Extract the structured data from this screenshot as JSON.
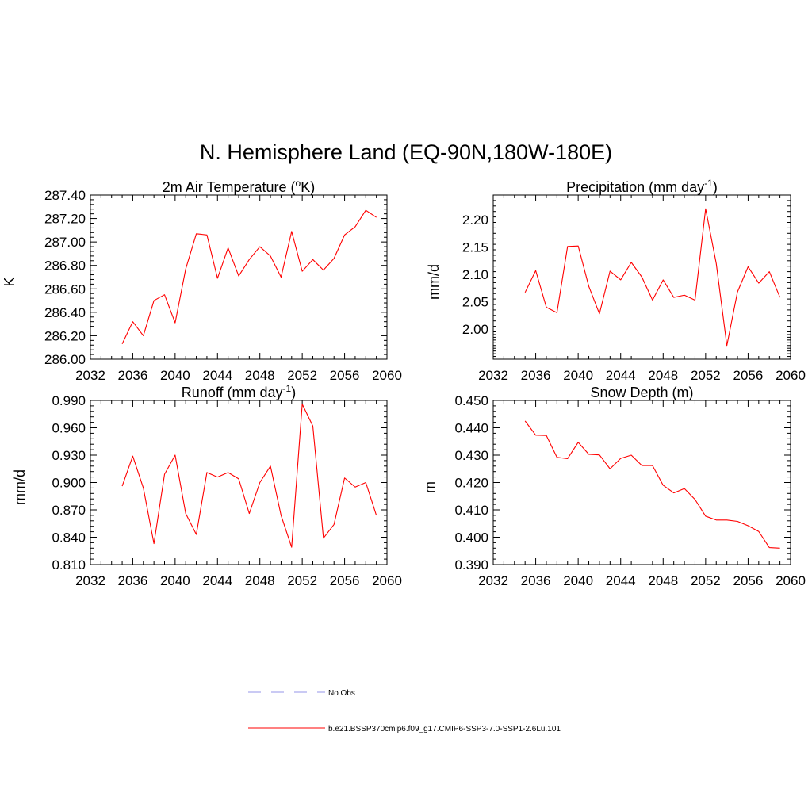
{
  "figure": {
    "title": "N. Hemisphere Land (EQ-90N,180W-180E)"
  },
  "chart_data": [
    {
      "type": "line",
      "title": "2m Air Temperature (",
      "title_sup": "o",
      "title_after": "K)",
      "xlabel": "",
      "ylabel": "K",
      "xlim": [
        2032,
        2060
      ],
      "ylim": [
        286.0,
        287.4
      ],
      "x_ticks": [
        "2032",
        "2036",
        "2040",
        "2044",
        "2048",
        "2052",
        "2056",
        "2060"
      ],
      "y_ticks": [
        "286.00",
        "286.20",
        "286.40",
        "286.60",
        "286.80",
        "287.00",
        "287.20",
        "287.40"
      ],
      "series": [
        {
          "color": "#ff0000",
          "x": [
            2035,
            2036,
            2037,
            2038,
            2039,
            2040,
            2041,
            2042,
            2043,
            2044,
            2045,
            2046,
            2047,
            2048,
            2049,
            2050,
            2051,
            2052,
            2053,
            2054,
            2055,
            2056,
            2057,
            2058,
            2059
          ],
          "y": [
            286.13,
            286.32,
            286.2,
            286.5,
            286.55,
            286.31,
            286.77,
            287.07,
            287.06,
            286.69,
            286.95,
            286.71,
            286.85,
            286.96,
            286.88,
            286.7,
            287.09,
            286.75,
            286.85,
            286.76,
            286.86,
            287.06,
            287.13,
            287.27,
            287.21
          ]
        }
      ]
    },
    {
      "type": "line",
      "title": "Precipitation (mm day",
      "title_sup": "-1",
      "title_after": ")",
      "xlabel": "",
      "ylabel": "mm/d",
      "xlim": [
        2032,
        2060
      ],
      "ylim": [
        1.945,
        2.245
      ],
      "x_ticks": [
        "2032",
        "2036",
        "2040",
        "2044",
        "2048",
        "2052",
        "2056",
        "2060"
      ],
      "y_ticks": [
        "2.00",
        "2.05",
        "2.10",
        "2.15",
        "2.20"
      ],
      "series": [
        {
          "color": "#ff0000",
          "x": [
            2035,
            2036,
            2037,
            2038,
            2039,
            2040,
            2041,
            2042,
            2043,
            2044,
            2045,
            2046,
            2047,
            2048,
            2049,
            2050,
            2051,
            2052,
            2053,
            2054,
            2055,
            2056,
            2057,
            2058,
            2059
          ],
          "y": [
            2.067,
            2.107,
            2.04,
            2.03,
            2.151,
            2.152,
            2.078,
            2.028,
            2.106,
            2.09,
            2.122,
            2.095,
            2.053,
            2.09,
            2.058,
            2.062,
            2.053,
            2.22,
            2.12,
            1.97,
            2.068,
            2.114,
            2.084,
            2.105,
            2.058
          ]
        }
      ]
    },
    {
      "type": "line",
      "title": "Runoff (mm day",
      "title_sup": "-1",
      "title_after": ")",
      "xlabel": "",
      "ylabel": "mm/d",
      "xlim": [
        2032,
        2060
      ],
      "ylim": [
        0.81,
        0.99
      ],
      "x_ticks": [
        "2032",
        "2036",
        "2040",
        "2044",
        "2048",
        "2052",
        "2056",
        "2060"
      ],
      "y_ticks": [
        "0.810",
        "0.840",
        "0.870",
        "0.900",
        "0.930",
        "0.960",
        "0.990"
      ],
      "series": [
        {
          "color": "#ff0000",
          "x": [
            2035,
            2036,
            2037,
            2038,
            2039,
            2040,
            2041,
            2042,
            2043,
            2044,
            2045,
            2046,
            2047,
            2048,
            2049,
            2050,
            2051,
            2052,
            2053,
            2054,
            2055,
            2056,
            2057,
            2058,
            2059
          ],
          "y": [
            0.896,
            0.929,
            0.894,
            0.833,
            0.909,
            0.93,
            0.866,
            0.843,
            0.911,
            0.906,
            0.911,
            0.904,
            0.866,
            0.9,
            0.918,
            0.864,
            0.829,
            0.986,
            0.962,
            0.839,
            0.854,
            0.905,
            0.895,
            0.9,
            0.864
          ]
        }
      ]
    },
    {
      "type": "line",
      "title": "Snow Depth (m)",
      "title_sup": "",
      "title_after": "",
      "xlabel": "",
      "ylabel": "m",
      "xlim": [
        2032,
        2060
      ],
      "ylim": [
        0.39,
        0.45
      ],
      "x_ticks": [
        "2032",
        "2036",
        "2040",
        "2044",
        "2048",
        "2052",
        "2056",
        "2060"
      ],
      "y_ticks": [
        "0.390",
        "0.400",
        "0.410",
        "0.420",
        "0.430",
        "0.440",
        "0.450"
      ],
      "series": [
        {
          "color": "#ff0000",
          "x": [
            2035,
            2036,
            2037,
            2038,
            2039,
            2040,
            2041,
            2042,
            2043,
            2044,
            2045,
            2046,
            2047,
            2048,
            2049,
            2050,
            2051,
            2052,
            2053,
            2054,
            2055,
            2056,
            2057,
            2058,
            2059
          ],
          "y": [
            0.4425,
            0.4373,
            0.4372,
            0.4292,
            0.4287,
            0.4347,
            0.4303,
            0.4301,
            0.425,
            0.4288,
            0.43,
            0.4262,
            0.4262,
            0.419,
            0.4162,
            0.4178,
            0.4138,
            0.4077,
            0.4063,
            0.4063,
            0.4058,
            0.4042,
            0.4021,
            0.3962,
            0.396
          ]
        }
      ]
    }
  ],
  "legend": [
    {
      "label": "No Obs",
      "color": "#aaaaee",
      "dash": true
    },
    {
      "label": "b.e21.BSSP370cmip6.f09_g17.CMIP6-SSP3-7.0-SSP1-2.6Lu.101",
      "color": "#ff0000",
      "dash": false
    }
  ]
}
